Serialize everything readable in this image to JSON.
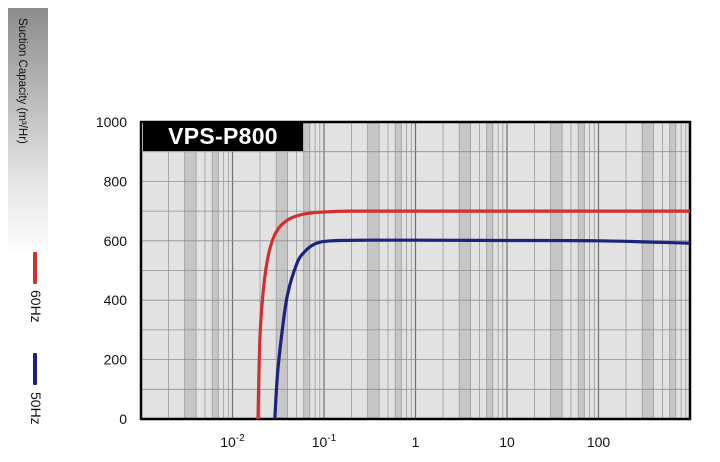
{
  "chart_data": {
    "type": "line",
    "title": "VPS-P800",
    "ylabel": "Suction Capacity (m³/Hr)",
    "xscale": "log",
    "xlim": [
      0.001,
      1000
    ],
    "ylim": [
      0,
      1000
    ],
    "grid": true,
    "yticks": [
      0,
      200,
      400,
      600,
      800,
      1000
    ],
    "ytick_labels": [
      "0",
      "200",
      "400",
      "600",
      "800",
      "1000"
    ],
    "xticks": [
      0.01,
      0.1,
      1,
      10,
      100
    ],
    "xtick_labels": [
      {
        "base": "10",
        "exp": "-2"
      },
      {
        "base": "10",
        "exp": "-1"
      },
      {
        "base": "1",
        "exp": ""
      },
      {
        "base": "10",
        "exp": ""
      },
      {
        "base": "100",
        "exp": ""
      }
    ],
    "legend_position": "left",
    "series": [
      {
        "name": "60Hz",
        "color": "#d32f2f",
        "points": [
          [
            0.019,
            0
          ],
          [
            0.02,
            280
          ],
          [
            0.022,
            450
          ],
          [
            0.025,
            560
          ],
          [
            0.03,
            630
          ],
          [
            0.04,
            670
          ],
          [
            0.06,
            690
          ],
          [
            0.1,
            697
          ],
          [
            0.2,
            700
          ],
          [
            1,
            700
          ],
          [
            10,
            700
          ],
          [
            100,
            700
          ],
          [
            1000,
            700
          ]
        ]
      },
      {
        "name": "50Hz",
        "color": "#1a237e",
        "points": [
          [
            0.029,
            0
          ],
          [
            0.031,
            150
          ],
          [
            0.035,
            300
          ],
          [
            0.04,
            420
          ],
          [
            0.05,
            520
          ],
          [
            0.06,
            560
          ],
          [
            0.08,
            590
          ],
          [
            0.12,
            600
          ],
          [
            0.3,
            602
          ],
          [
            1,
            602
          ],
          [
            10,
            601
          ],
          [
            100,
            600
          ],
          [
            1000,
            592
          ]
        ]
      }
    ]
  }
}
